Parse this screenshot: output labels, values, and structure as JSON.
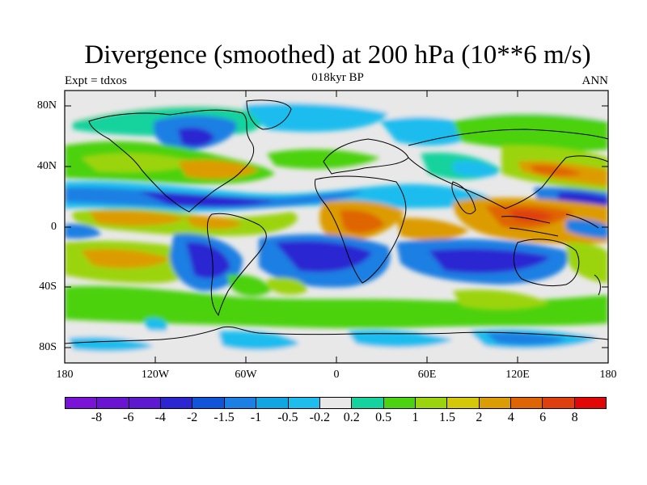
{
  "title": "Divergence (smoothed) at 200 hPa (10**6 m/s)",
  "subtitle_left": "Expt = tdxos",
  "subtitle_center": "018kyr BP",
  "subtitle_right": "ANN",
  "lon_labels": [
    "180",
    "120W",
    "60W",
    "0",
    "60E",
    "120E",
    "180"
  ],
  "lat_labels": [
    "80N",
    "40N",
    "0",
    "40S",
    "80S"
  ],
  "colorbar": {
    "colors": [
      "#7a12d8",
      "#6a13d0",
      "#5d18d0",
      "#2b26d1",
      "#0f55d9",
      "#1b7fe3",
      "#10a6e3",
      "#1dbdee",
      "#e8e8e8",
      "#14d39e",
      "#4bd210",
      "#9bd40c",
      "#d4c808",
      "#dc9c04",
      "#df6504",
      "#df3f0d",
      "#e20606"
    ],
    "labels": [
      "-8",
      "-6",
      "-4",
      "-2",
      "-1.5",
      "-1",
      "-0.5",
      "-0.2",
      "0.2",
      "0.5",
      "1",
      "1.5",
      "2",
      "4",
      "6",
      "8"
    ]
  }
}
